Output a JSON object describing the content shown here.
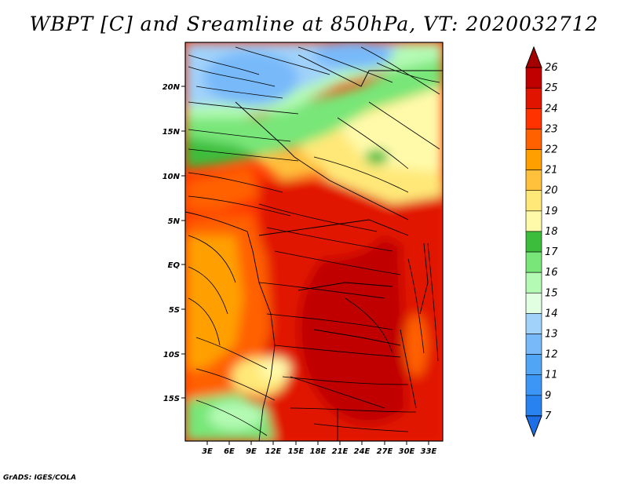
{
  "title": "WBPT [C] and Sreamline at 850hPa, VT: 2020032712",
  "footer": "GrADS: IGES/COLA",
  "map": {
    "lat_labels": [
      "20N",
      "15N",
      "10N",
      "5N",
      "EQ",
      "5S",
      "10S",
      "15S"
    ],
    "lon_labels": [
      "3E",
      "6E",
      "9E",
      "12E",
      "15E",
      "18E",
      "21E",
      "24E",
      "27E",
      "30E",
      "33E"
    ]
  },
  "colorbar": {
    "levels": [
      "7",
      "9",
      "11",
      "12",
      "13",
      "14",
      "15",
      "16",
      "17",
      "18",
      "19",
      "20",
      "21",
      "22",
      "23",
      "24",
      "25",
      "26"
    ],
    "colors": [
      "#1e6ee6",
      "#2882f0",
      "#3c96f5",
      "#50a5f5",
      "#78b9fa",
      "#a0d2fa",
      "#e1ffe1",
      "#b4fab4",
      "#78e678",
      "#3cbe3c",
      "#fffaaa",
      "#ffe878",
      "#ffc03c",
      "#ffa000",
      "#ff6000",
      "#ff3200",
      "#e11400",
      "#c00000",
      "#a50000"
    ]
  }
}
